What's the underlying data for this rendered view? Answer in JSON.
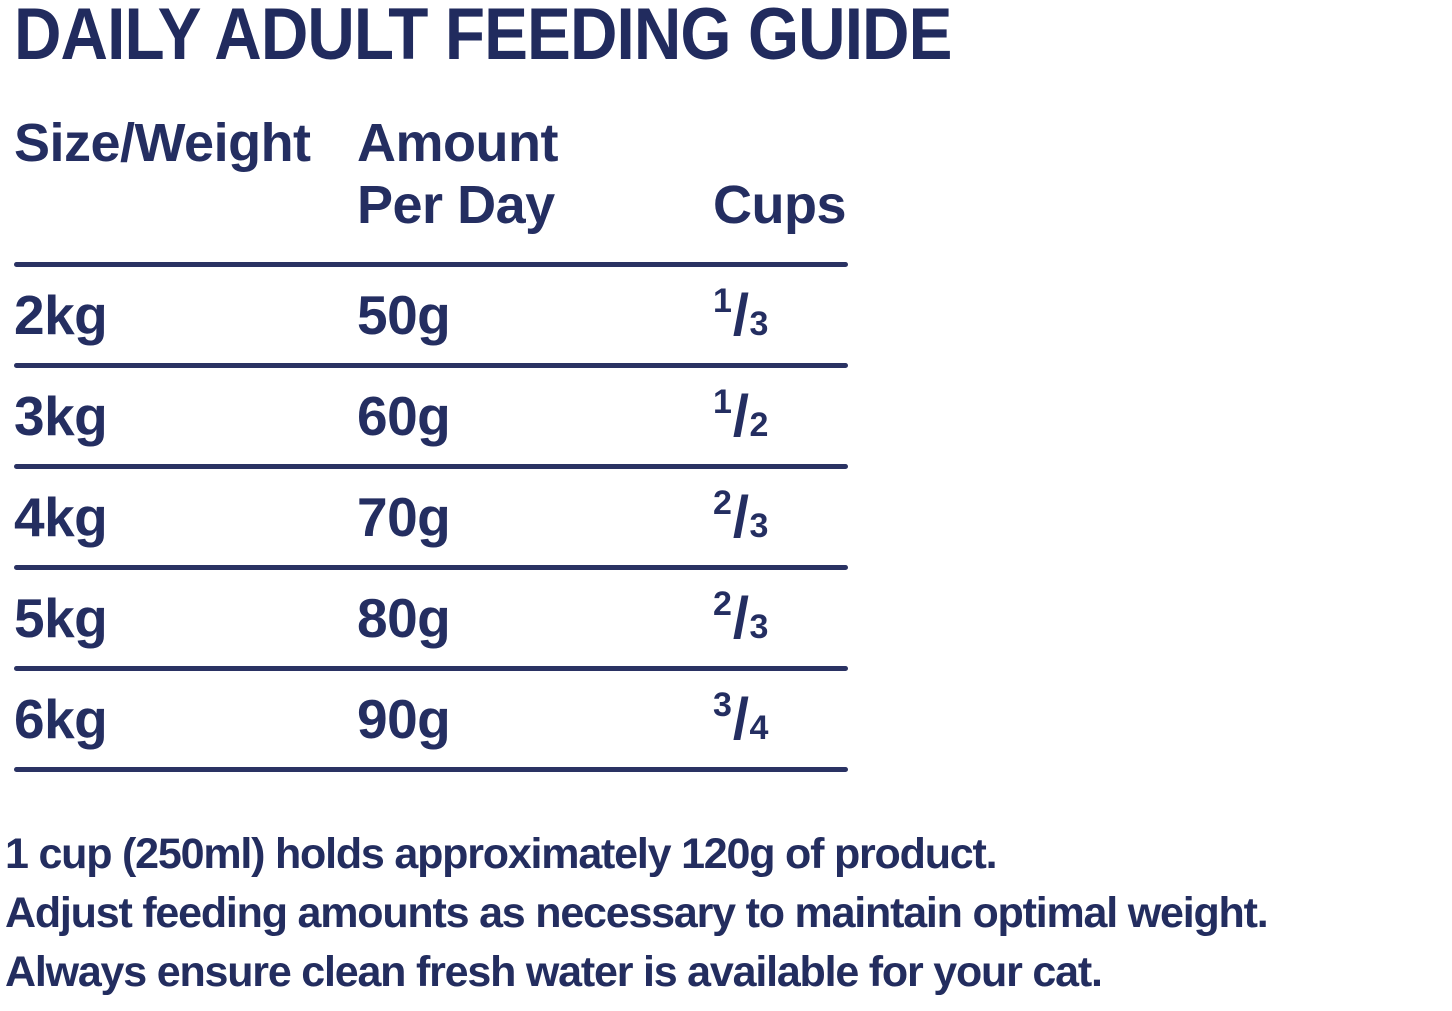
{
  "title": "DAILY ADULT FEEDING GUIDE",
  "table": {
    "headers": {
      "size_weight": "Size/Weight",
      "amount_line1": "Amount",
      "amount_line2": "Per Day",
      "cups": "Cups"
    },
    "fraction_slash": "/",
    "rows": [
      {
        "size": "2kg",
        "amount": "50g",
        "cups_num": "1",
        "cups_den": "3"
      },
      {
        "size": "3kg",
        "amount": "60g",
        "cups_num": "1",
        "cups_den": "2"
      },
      {
        "size": "4kg",
        "amount": "70g",
        "cups_num": "2",
        "cups_den": "3"
      },
      {
        "size": "5kg",
        "amount": "80g",
        "cups_num": "2",
        "cups_den": "3"
      },
      {
        "size": "6kg",
        "amount": "90g",
        "cups_num": "3",
        "cups_den": "4"
      }
    ]
  },
  "notes": [
    "1 cup (250ml) holds approximately 120g of product.",
    "Adjust feeding amounts as necessary to maintain optimal weight.",
    "Always ensure clean fresh water is available for your cat."
  ],
  "colors": {
    "text_navy": "#242e61",
    "rule_navy": "#2a3263",
    "background": "#ffffff"
  }
}
